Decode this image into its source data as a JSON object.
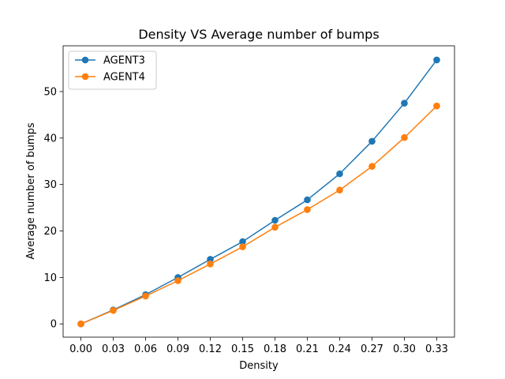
{
  "chart_data": {
    "type": "line",
    "title": "Density VS Average number of bumps",
    "xlabel": "Density",
    "ylabel": "Average number of bumps",
    "x": [
      0.0,
      0.03,
      0.06,
      0.09,
      0.12,
      0.15,
      0.18,
      0.21,
      0.24,
      0.27,
      0.3,
      0.33
    ],
    "x_tick_labels": [
      "0.00",
      "0.03",
      "0.06",
      "0.09",
      "0.12",
      "0.15",
      "0.18",
      "0.21",
      "0.24",
      "0.27",
      "0.30",
      "0.33"
    ],
    "y_ticks": [
      0,
      10,
      20,
      30,
      40,
      50
    ],
    "xlim": [
      -0.0165,
      0.3465
    ],
    "ylim": [
      -2.85,
      59.85
    ],
    "grid": false,
    "legend_position": "upper-left",
    "series": [
      {
        "name": "AGENT3",
        "color": "#1f77b4",
        "values": [
          0.0,
          3.0,
          6.3,
          10.0,
          13.9,
          17.7,
          22.3,
          26.7,
          32.3,
          39.3,
          47.5,
          56.8
        ]
      },
      {
        "name": "AGENT4",
        "color": "#ff7f0e",
        "values": [
          0.0,
          2.9,
          6.0,
          9.3,
          12.9,
          16.6,
          20.8,
          24.6,
          28.8,
          33.9,
          40.1,
          46.9
        ]
      }
    ]
  }
}
